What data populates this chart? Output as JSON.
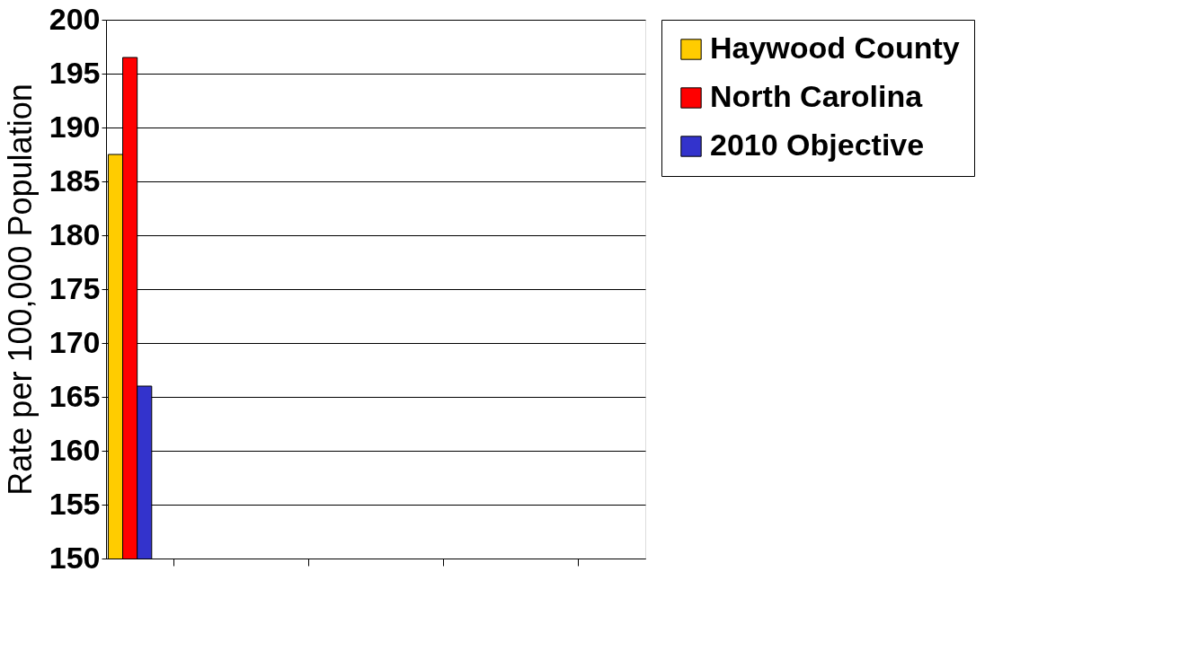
{
  "chart_data": {
    "type": "bar",
    "ylabel": "Rate per 100,000 Population",
    "categories": [
      null,
      null,
      null,
      null
    ],
    "series": [
      {
        "name": "Haywood County",
        "color": "#ffcc00",
        "values": [
          187.5,
          null,
          null,
          null
        ]
      },
      {
        "name": "North Carolina",
        "color": "#ff0000",
        "values": [
          196.5,
          null,
          null,
          null
        ]
      },
      {
        "name": "2010 Objective",
        "color": "#3333cc",
        "values": [
          166,
          null,
          null,
          null
        ]
      }
    ],
    "ylim": [
      150,
      200
    ],
    "yticks": [
      150,
      155,
      160,
      165,
      170,
      175,
      180,
      185,
      190,
      195,
      200
    ],
    "grid": "y",
    "legend": "right"
  }
}
